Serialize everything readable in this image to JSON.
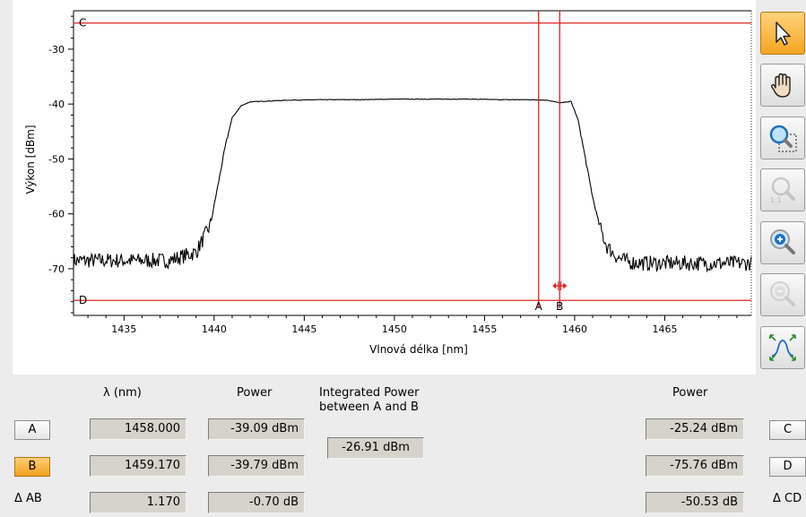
{
  "chart_data": {
    "type": "line",
    "xlabel": "Vlnová délka [nm]",
    "ylabel": "Výkon [dBm]",
    "xlim": [
      1432.2,
      1469.8
    ],
    "ylim": [
      -78.5,
      -23
    ],
    "xticks": [
      1435,
      1440,
      1445,
      1450,
      1455,
      1460,
      1465
    ],
    "yticks": [
      -30,
      -40,
      -50,
      -60,
      -70
    ],
    "grid": false,
    "series": [
      {
        "x": [
          1432.2,
          1437.5,
          1439.0,
          1439.8,
          1440.2,
          1440.6,
          1441.0,
          1441.5,
          1442.0,
          1444.0,
          1446.0,
          1448.0,
          1450.0,
          1452.0,
          1454.0,
          1456.0,
          1457.5,
          1458.5,
          1459.2,
          1459.8,
          1460.2,
          1460.6,
          1461.0,
          1461.4,
          1461.8,
          1462.4,
          1463.0,
          1464.0,
          1469.8
        ],
        "y": [
          -68.5,
          -68.5,
          -67.0,
          -62.0,
          -55.0,
          -48.0,
          -42.5,
          -40.3,
          -39.6,
          -39.3,
          -39.2,
          -39.2,
          -39.1,
          -39.1,
          -39.1,
          -39.2,
          -39.2,
          -39.3,
          -39.8,
          -39.5,
          -43.0,
          -50.0,
          -57.0,
          -62.5,
          -66.0,
          -68.0,
          -68.8,
          -69.0,
          -69.0
        ]
      }
    ],
    "markers": [
      {
        "name": "A",
        "orientation": "vertical",
        "x": 1458.0
      },
      {
        "name": "B",
        "orientation": "vertical",
        "x": 1459.17
      },
      {
        "name": "C",
        "orientation": "horizontal",
        "y": -25.24
      },
      {
        "name": "D",
        "orientation": "horizontal",
        "y": -75.76
      }
    ],
    "marker_color": "#e02020",
    "trace_color": "#000000"
  },
  "toolbar": {
    "tools": [
      {
        "name": "select-pointer-icon",
        "active": true
      },
      {
        "name": "pan-hand-icon",
        "active": false
      },
      {
        "name": "zoom-rectangle-icon",
        "active": false
      },
      {
        "name": "zoom-reset-icon",
        "active": false,
        "disabled": true
      },
      {
        "name": "zoom-in-icon",
        "active": false
      },
      {
        "name": "zoom-out-icon",
        "active": false,
        "disabled": true
      },
      {
        "name": "fit-to-data-icon",
        "active": false
      }
    ]
  },
  "measurements": {
    "lambda_header": "λ (nm)",
    "power_header_left": "Power",
    "integrated_header_line1": "Integrated Power",
    "integrated_header_line2": "between A and B",
    "power_header_right": "Power",
    "btn_a": "A",
    "btn_b": "B",
    "delta_ab": "Δ AB",
    "lambda_a": "1458.000",
    "lambda_b": "1459.170",
    "lambda_delta": "1.170",
    "power_a": "-39.09 dBm",
    "power_b": "-39.79 dBm",
    "power_delta_ab": "-0.70 dB",
    "integrated_power": "-26.91 dBm",
    "power_c": "-25.24 dBm",
    "power_d": "-75.76 dBm",
    "power_delta_cd": "-50.53 dB",
    "btn_c": "C",
    "btn_d": "D",
    "delta_cd": "Δ CD"
  }
}
